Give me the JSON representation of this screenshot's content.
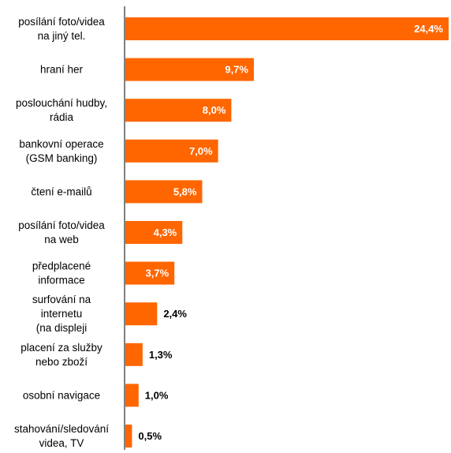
{
  "chart_data": {
    "type": "bar",
    "orientation": "horizontal",
    "categories": [
      [
        "posílání foto/videa",
        "na jiný tel."
      ],
      [
        "hraní her"
      ],
      [
        "poslouchání hudby,",
        "rádia"
      ],
      [
        "bankovní operace",
        "(GSM banking)"
      ],
      [
        "čtení e-mailů"
      ],
      [
        "posílání foto/videa",
        "na web"
      ],
      [
        "předplacené",
        "informace"
      ],
      [
        "surfování na",
        "internetu",
        "(na displeji"
      ],
      [
        "placení za služby",
        "nebo zboží"
      ],
      [
        "osobní navigace"
      ],
      [
        "stahování/sledování",
        "videa, TV"
      ]
    ],
    "values": [
      24.4,
      9.7,
      8.0,
      7.0,
      5.8,
      4.3,
      3.7,
      2.4,
      1.3,
      1.0,
      0.5
    ],
    "value_labels": [
      "24,4%",
      "9,7%",
      "8,0%",
      "7,0%",
      "5,8%",
      "4,3%",
      "3,7%",
      "2,4%",
      "1,3%",
      "1,0%",
      "0,5%"
    ],
    "xlim": [
      0,
      24.4
    ],
    "bar_color": "#ff6600",
    "label_inside_color": "#ffffff",
    "label_outside_color": "#000000",
    "grid": false,
    "legend": false
  }
}
